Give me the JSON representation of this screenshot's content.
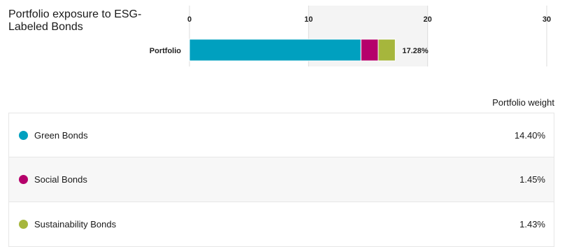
{
  "title": "Portfolio exposure to ESG-Labeled Bonds",
  "weight_header": "Portfolio weight",
  "chart_data": {
    "type": "bar",
    "orientation": "horizontal",
    "stacked": true,
    "categories": [
      "Portfolio"
    ],
    "series": [
      {
        "name": "Green Bonds",
        "values": [
          14.4
        ],
        "color": "#00a0bf"
      },
      {
        "name": "Social Bonds",
        "values": [
          1.45
        ],
        "color": "#b5006b"
      },
      {
        "name": "Sustainability Bonds",
        "values": [
          1.43
        ],
        "color": "#a6b63c"
      }
    ],
    "total_label": "17.28%",
    "xlim": [
      0,
      30
    ],
    "xticks": [
      "0",
      "10",
      "20",
      "30"
    ],
    "highlight_band": [
      10,
      20
    ]
  },
  "legend_rows": [
    {
      "label": "Green Bonds",
      "value": "14.40%",
      "color": "#00a0bf"
    },
    {
      "label": "Social Bonds",
      "value": "1.45%",
      "color": "#b5006b"
    },
    {
      "label": "Sustainability Bonds",
      "value": "1.43%",
      "color": "#a6b63c"
    }
  ]
}
